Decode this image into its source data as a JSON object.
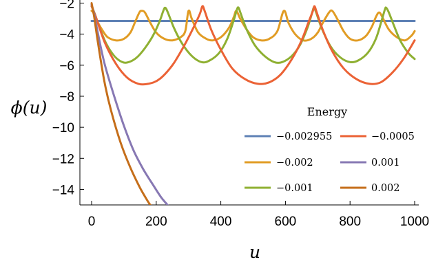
{
  "chart_data": {
    "type": "line",
    "title": "",
    "xlabel": "u",
    "ylabel": "ϕ(u)",
    "xlim": [
      0,
      1000
    ],
    "ylim": [
      -15,
      -1.8
    ],
    "x_ticks": [
      0,
      200,
      400,
      600,
      800,
      1000
    ],
    "x_tick_labels": [
      "0",
      "200",
      "400",
      "600",
      "800",
      "1000"
    ],
    "y_ticks": [
      -14,
      -12,
      -10,
      -8,
      -6,
      -4,
      -2
    ],
    "y_tick_labels": [
      "−14",
      "−12",
      "−10",
      "−8",
      "−6",
      "−4",
      "−2"
    ],
    "grid": false,
    "legend": {
      "title": "Energy",
      "placement": "bottom-right"
    },
    "series": [
      {
        "name": "−0.002955",
        "color": "#5E81B5",
        "points": [
          [
            0,
            -3.15
          ],
          [
            1000,
            -3.15
          ]
        ]
      },
      {
        "name": "−0.002",
        "color": "#E19C24",
        "points": [
          [
            0,
            -2.5
          ],
          [
            5,
            -2.6
          ],
          [
            18,
            -3.2
          ],
          [
            35,
            -3.8
          ],
          [
            50,
            -4.2
          ],
          [
            75,
            -4.4
          ],
          [
            100,
            -4.3
          ],
          [
            120,
            -3.9
          ],
          [
            135,
            -3.2
          ],
          [
            148,
            -2.6
          ],
          [
            155,
            -2.5
          ],
          [
            165,
            -2.6
          ],
          [
            180,
            -3.2
          ],
          [
            200,
            -3.9
          ],
          [
            225,
            -4.3
          ],
          [
            250,
            -4.4
          ],
          [
            275,
            -4.2
          ],
          [
            290,
            -3.8
          ],
          [
            300,
            -2.5
          ],
          [
            310,
            -3.0
          ],
          [
            330,
            -3.9
          ],
          [
            355,
            -4.3
          ],
          [
            375,
            -4.4
          ],
          [
            400,
            -4.2
          ],
          [
            425,
            -3.6
          ],
          [
            440,
            -2.9
          ],
          [
            448,
            -2.5
          ],
          [
            460,
            -3.0
          ],
          [
            480,
            -3.7
          ],
          [
            500,
            -4.2
          ],
          [
            525,
            -4.4
          ],
          [
            550,
            -4.3
          ],
          [
            575,
            -3.8
          ],
          [
            595,
            -2.5
          ],
          [
            610,
            -3.3
          ],
          [
            630,
            -4.0
          ],
          [
            655,
            -4.4
          ],
          [
            680,
            -4.3
          ],
          [
            700,
            -3.9
          ],
          [
            715,
            -3.3
          ],
          [
            735,
            -2.6
          ],
          [
            745,
            -2.5
          ],
          [
            760,
            -3.0
          ],
          [
            780,
            -3.8
          ],
          [
            800,
            -4.3
          ],
          [
            825,
            -4.4
          ],
          [
            850,
            -4.1
          ],
          [
            868,
            -3.5
          ],
          [
            880,
            -2.9
          ],
          [
            890,
            -2.6
          ],
          [
            900,
            -2.9
          ],
          [
            920,
            -3.7
          ],
          [
            945,
            -4.2
          ],
          [
            970,
            -4.4
          ],
          [
            990,
            -4.1
          ],
          [
            1000,
            -3.8
          ]
        ]
      },
      {
        "name": "−0.001",
        "color": "#8FB032",
        "points": [
          [
            0,
            -2.2
          ],
          [
            10,
            -2.7
          ],
          [
            25,
            -3.6
          ],
          [
            45,
            -4.6
          ],
          [
            70,
            -5.4
          ],
          [
            95,
            -5.8
          ],
          [
            115,
            -5.8
          ],
          [
            140,
            -5.5
          ],
          [
            165,
            -4.9
          ],
          [
            190,
            -4.1
          ],
          [
            210,
            -3.2
          ],
          [
            222,
            -2.5
          ],
          [
            228,
            -2.3
          ],
          [
            236,
            -2.6
          ],
          [
            255,
            -3.6
          ],
          [
            280,
            -4.6
          ],
          [
            310,
            -5.4
          ],
          [
            340,
            -5.8
          ],
          [
            365,
            -5.7
          ],
          [
            395,
            -5.2
          ],
          [
            420,
            -4.3
          ],
          [
            440,
            -3.1
          ],
          [
            450,
            -2.4
          ],
          [
            455,
            -2.3
          ],
          [
            462,
            -2.7
          ],
          [
            480,
            -3.7
          ],
          [
            505,
            -4.7
          ],
          [
            535,
            -5.4
          ],
          [
            565,
            -5.8
          ],
          [
            590,
            -5.8
          ],
          [
            620,
            -5.4
          ],
          [
            645,
            -4.7
          ],
          [
            668,
            -3.6
          ],
          [
            683,
            -2.6
          ],
          [
            688,
            -2.3
          ],
          [
            695,
            -2.6
          ],
          [
            712,
            -3.6
          ],
          [
            740,
            -4.8
          ],
          [
            770,
            -5.5
          ],
          [
            800,
            -5.8
          ],
          [
            825,
            -5.7
          ],
          [
            855,
            -5.2
          ],
          [
            880,
            -4.3
          ],
          [
            898,
            -3.1
          ],
          [
            908,
            -2.4
          ],
          [
            912,
            -2.3
          ],
          [
            920,
            -2.6
          ],
          [
            935,
            -3.4
          ],
          [
            955,
            -4.4
          ],
          [
            980,
            -5.2
          ],
          [
            1000,
            -5.6
          ]
        ]
      },
      {
        "name": "−0.0005",
        "color": "#EB6235",
        "points": [
          [
            0,
            -2.2
          ],
          [
            15,
            -3.0
          ],
          [
            40,
            -4.5
          ],
          [
            75,
            -5.9
          ],
          [
            110,
            -6.8
          ],
          [
            145,
            -7.2
          ],
          [
            175,
            -7.2
          ],
          [
            210,
            -6.9
          ],
          [
            250,
            -6.0
          ],
          [
            285,
            -4.8
          ],
          [
            315,
            -3.6
          ],
          [
            335,
            -2.7
          ],
          [
            343,
            -2.2
          ],
          [
            350,
            -2.5
          ],
          [
            370,
            -3.7
          ],
          [
            400,
            -5.0
          ],
          [
            435,
            -6.2
          ],
          [
            475,
            -6.9
          ],
          [
            515,
            -7.2
          ],
          [
            550,
            -7.1
          ],
          [
            585,
            -6.6
          ],
          [
            620,
            -5.6
          ],
          [
            650,
            -4.4
          ],
          [
            672,
            -3.2
          ],
          [
            685,
            -2.5
          ],
          [
            690,
            -2.2
          ],
          [
            697,
            -2.6
          ],
          [
            717,
            -3.8
          ],
          [
            745,
            -5.1
          ],
          [
            780,
            -6.2
          ],
          [
            820,
            -6.9
          ],
          [
            860,
            -7.2
          ],
          [
            895,
            -7.1
          ],
          [
            930,
            -6.5
          ],
          [
            965,
            -5.6
          ],
          [
            1000,
            -4.4
          ]
        ]
      },
      {
        "name": "0.001",
        "color": "#8778B3",
        "points": [
          [
            0,
            -2.1
          ],
          [
            8,
            -2.7
          ],
          [
            20,
            -4.0
          ],
          [
            40,
            -5.9
          ],
          [
            70,
            -8.0
          ],
          [
            100,
            -9.9
          ],
          [
            130,
            -11.5
          ],
          [
            160,
            -12.7
          ],
          [
            190,
            -13.7
          ],
          [
            215,
            -14.5
          ],
          [
            235,
            -15.0
          ]
        ]
      },
      {
        "name": "0.002",
        "color": "#C56E1A",
        "points": [
          [
            0,
            -2.0
          ],
          [
            8,
            -2.9
          ],
          [
            20,
            -4.6
          ],
          [
            40,
            -7.1
          ],
          [
            60,
            -8.9
          ],
          [
            90,
            -11.0
          ],
          [
            120,
            -12.6
          ],
          [
            150,
            -13.9
          ],
          [
            175,
            -14.8
          ],
          [
            182,
            -15.0
          ]
        ]
      }
    ]
  }
}
